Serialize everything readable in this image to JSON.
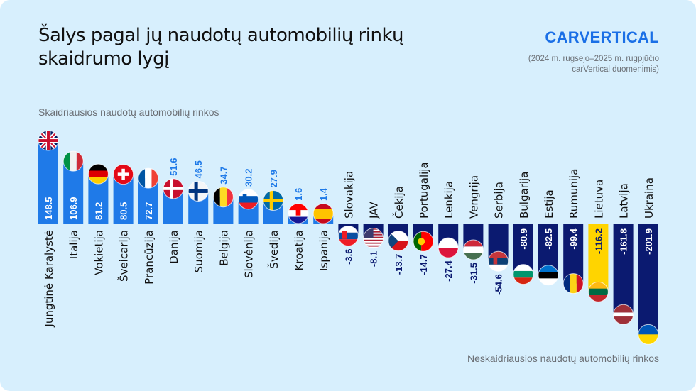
{
  "header": {
    "title": "Šalys pagal jų naudotų automobilių rinkų skaidrumo lygį",
    "logo": "CARVERTICAL",
    "source": "(2024 m. rugsėjo–2025 m. rugpjūčio carVertical duomenimis)"
  },
  "chart_data": {
    "type": "bar",
    "top_note": "Skaidriausios naudotų automobilių rinkos",
    "bottom_note": "Neskaidriausios naudotų automobilių rinkos",
    "categories": [
      "Jungtinė Karalystė",
      "Italija",
      "Vokietija",
      "Šveicarija",
      "Prancūzija",
      "Danija",
      "Suomija",
      "Belgija",
      "Slovėnija",
      "Švedija",
      "Kroatija",
      "Ispanija",
      "Slovakija",
      "JAV",
      "Čekija",
      "Portugalija",
      "Lenkija",
      "Vengrija",
      "Serbija",
      "Bulgarija",
      "Estija",
      "Rumunija",
      "Lietuva",
      "Latvija",
      "Ukraina"
    ],
    "values": [
      148.5,
      106.9,
      81.2,
      80.5,
      72.7,
      51.6,
      46.5,
      34.7,
      30.2,
      27.9,
      1.6,
      1.4,
      -3.6,
      -8.1,
      -13.7,
      -14.7,
      -27.4,
      -31.5,
      -54.6,
      -80.9,
      -82.5,
      -99.4,
      -116.2,
      -161.8,
      -201.9
    ],
    "flags": [
      "gb-flag-icon",
      "it-flag-icon",
      "de-flag-icon",
      "ch-flag-icon",
      "fr-flag-icon",
      "dk-flag-icon",
      "fi-flag-icon",
      "be-flag-icon",
      "si-flag-icon",
      "se-flag-icon",
      "hr-flag-icon",
      "es-flag-icon",
      "sk-flag-icon",
      "us-flag-icon",
      "cz-flag-icon",
      "pt-flag-icon",
      "pl-flag-icon",
      "hu-flag-icon",
      "rs-flag-icon",
      "bg-flag-icon",
      "ee-flag-icon",
      "ro-flag-icon",
      "lt-flag-icon",
      "lv-flag-icon",
      "ua-flag-icon"
    ],
    "highlight": "Lietuva",
    "colors": {
      "positive": "#1f7ae8",
      "negative": "#0b1a70",
      "highlight": "#ffd400",
      "background": "#d7effd"
    }
  }
}
